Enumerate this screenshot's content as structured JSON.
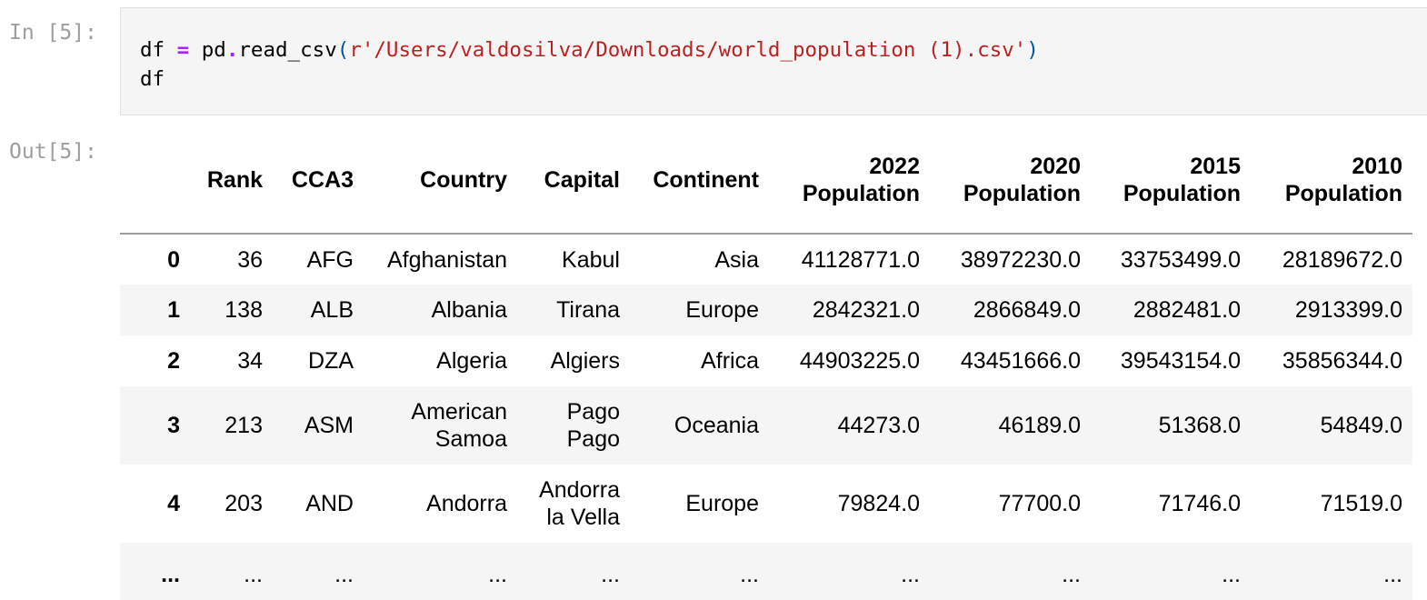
{
  "cell_in": {
    "prompt": "In [5]:",
    "code_line1": {
      "var": "df ",
      "op_eq": "=",
      "pre_call": " pd",
      "op_dot": ".",
      "func": "read_csv",
      "paren_open": "(",
      "string": "r'/Users/valdosilva/Downloads/world_population (1).csv'",
      "paren_close": ")"
    },
    "code_line2": "df"
  },
  "cell_out": {
    "prompt": "Out[5]:",
    "table": {
      "columns": {
        "index": "",
        "rank": "Rank",
        "cca3": "CCA3",
        "country": "Country",
        "capital": "Capital",
        "continent": "Continent",
        "pop2022_year": "2022",
        "pop2022_word": "Population",
        "pop2020_year": "2020",
        "pop2020_word": "Population",
        "pop2015_year": "2015",
        "pop2015_word": "Population",
        "pop2010_year": "2010",
        "pop2010_word": "Population"
      },
      "rows": [
        {
          "index": "0",
          "rank": "36",
          "cca3": "AFG",
          "country_1": "Afghanistan",
          "country_2": "",
          "capital_1": "Kabul",
          "capital_2": "",
          "continent": "Asia",
          "pop2022": "41128771.0",
          "pop2020": "38972230.0",
          "pop2015": "33753499.0",
          "pop2010": "28189672.0"
        },
        {
          "index": "1",
          "rank": "138",
          "cca3": "ALB",
          "country_1": "Albania",
          "country_2": "",
          "capital_1": "Tirana",
          "capital_2": "",
          "continent": "Europe",
          "pop2022": "2842321.0",
          "pop2020": "2866849.0",
          "pop2015": "2882481.0",
          "pop2010": "2913399.0"
        },
        {
          "index": "2",
          "rank": "34",
          "cca3": "DZA",
          "country_1": "Algeria",
          "country_2": "",
          "capital_1": "Algiers",
          "capital_2": "",
          "continent": "Africa",
          "pop2022": "44903225.0",
          "pop2020": "43451666.0",
          "pop2015": "39543154.0",
          "pop2010": "35856344.0"
        },
        {
          "index": "3",
          "rank": "213",
          "cca3": "ASM",
          "country_1": "American",
          "country_2": "Samoa",
          "capital_1": "Pago",
          "capital_2": "Pago",
          "continent": "Oceania",
          "pop2022": "44273.0",
          "pop2020": "46189.0",
          "pop2015": "51368.0",
          "pop2010": "54849.0"
        },
        {
          "index": "4",
          "rank": "203",
          "cca3": "AND",
          "country_1": "Andorra",
          "country_2": "",
          "capital_1": "Andorra",
          "capital_2": "la Vella",
          "continent": "Europe",
          "pop2022": "79824.0",
          "pop2020": "77700.0",
          "pop2015": "71746.0",
          "pop2010": "71519.0"
        },
        {
          "index": "...",
          "rank": "...",
          "cca3": "...",
          "country_1": "...",
          "country_2": "",
          "capital_1": "...",
          "capital_2": "",
          "continent": "...",
          "pop2022": "...",
          "pop2020": "...",
          "pop2015": "...",
          "pop2010": "..."
        }
      ]
    }
  }
}
